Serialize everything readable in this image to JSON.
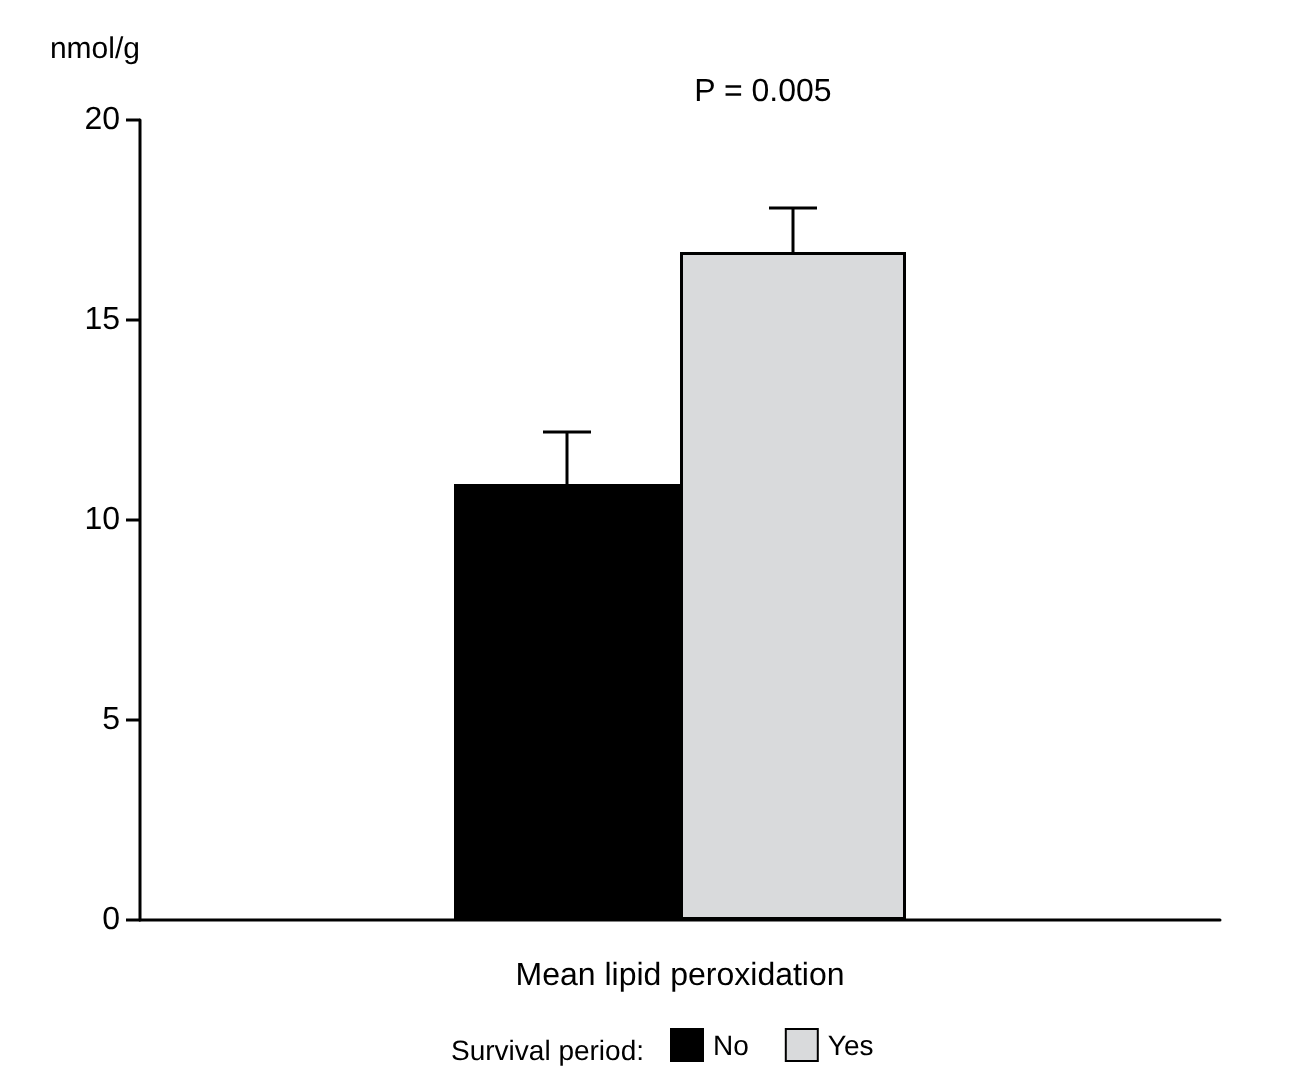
{
  "chart_data": {
    "type": "bar",
    "ylabel": "nmol/g",
    "xlabel": "Mean lipid peroxidation",
    "legend_title": "Survival period:",
    "annotations": [
      "P = 0.005"
    ],
    "categories": [
      null
    ],
    "series": [
      {
        "name": "No",
        "color": "#000000",
        "values": [
          10.9
        ],
        "errors": [
          [
            10.9,
            12.2
          ]
        ]
      },
      {
        "name": "Yes",
        "color": "#d9dadc",
        "values": [
          16.7
        ],
        "errors": [
          [
            16.7,
            17.8
          ]
        ]
      }
    ],
    "ylim": [
      0,
      20
    ],
    "yticks": [
      0,
      5,
      10,
      15,
      20
    ],
    "grid": false,
    "legend": "bottom"
  }
}
